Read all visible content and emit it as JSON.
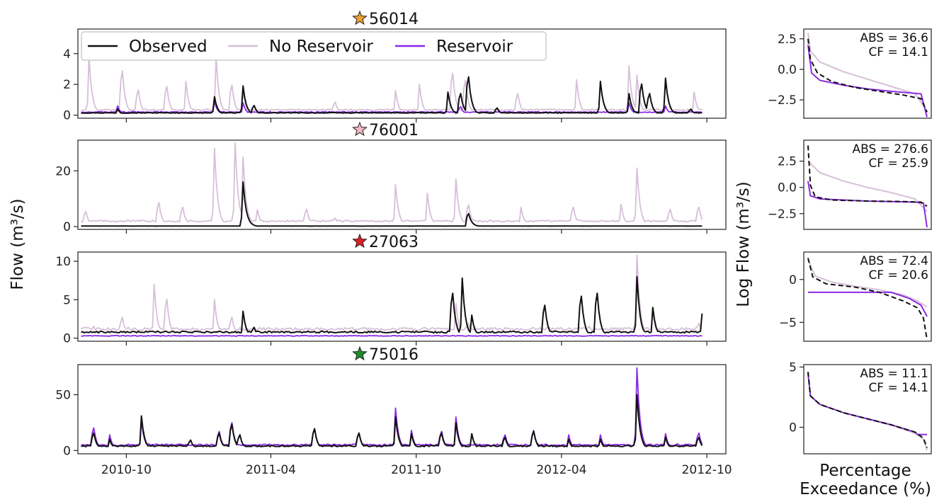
{
  "colors": {
    "observed": "#111111",
    "no_reservoir": "#d6bfd8",
    "reservoir": "#8a2be2",
    "star_56014": "#f0a030",
    "star_76001": "#f4b6c2",
    "star_27063": "#e02020",
    "star_75016": "#1f8a2a"
  },
  "figure": {
    "ylabel_left": "Flow (m³/s)",
    "ylabel_right": "Log Flow (m³/s)",
    "xlabel_right_line1": "Percentage",
    "xlabel_right_line2": "Exceedance (%)",
    "date_ticks": [
      "2010-10",
      "2011-04",
      "2011-10",
      "2012-04",
      "2012-10"
    ]
  },
  "legend": {
    "placement": "top-left of first panel",
    "items": [
      {
        "label": "Observed",
        "color_key": "observed"
      },
      {
        "label": "No Reservoir",
        "color_key": "no_reservoir"
      },
      {
        "label": "Reservoir",
        "color_key": "reservoir"
      }
    ]
  },
  "chart_data": [
    {
      "type": "line",
      "title": "56014",
      "star_color_key": "star_56014",
      "x_range": [
        "2010-08-01",
        "2012-09-30"
      ],
      "ylim": [
        -0.2,
        5.6
      ],
      "yticks": [
        0,
        2,
        4
      ],
      "series": [
        {
          "name": "Observed",
          "color_key": "observed",
          "base": 0.15,
          "peaks": [
            [
              "2010-09-20",
              0.4
            ],
            [
              "2011-01-20",
              1.2
            ],
            [
              "2011-02-25",
              1.9
            ],
            [
              "2011-03-10",
              0.8
            ],
            [
              "2011-11-10",
              1.5
            ],
            [
              "2011-11-25",
              1.8
            ],
            [
              "2011-12-05",
              3.2
            ],
            [
              "2012-01-10",
              0.6
            ],
            [
              "2012-05-20",
              2.2
            ],
            [
              "2012-06-25",
              1.4
            ],
            [
              "2012-07-10",
              2.6
            ],
            [
              "2012-07-20",
              1.8
            ],
            [
              "2012-08-10",
              2.4
            ],
            [
              "2012-09-10",
              0.5
            ]
          ]
        },
        {
          "name": "No Reservoir",
          "color_key": "no_reservoir",
          "base": 0.35,
          "peaks": [
            [
              "2010-08-15",
              3.8
            ],
            [
              "2010-09-25",
              3.7
            ],
            [
              "2010-10-15",
              2.1
            ],
            [
              "2010-11-20",
              2.4
            ],
            [
              "2010-12-15",
              2.2
            ],
            [
              "2011-01-22",
              3.7
            ],
            [
              "2011-02-10",
              2.5
            ],
            [
              "2011-02-25",
              1.6
            ],
            [
              "2011-06-20",
              1.1
            ],
            [
              "2011-09-05",
              1.6
            ],
            [
              "2011-10-05",
              2.0
            ],
            [
              "2011-11-15",
              3.5
            ],
            [
              "2011-12-01",
              2.9
            ],
            [
              "2012-02-05",
              1.8
            ],
            [
              "2012-04-20",
              2.3
            ],
            [
              "2012-05-20",
              2.2
            ],
            [
              "2012-06-25",
              3.2
            ],
            [
              "2012-07-05",
              2.6
            ],
            [
              "2012-08-10",
              2.2
            ],
            [
              "2012-09-15",
              1.5
            ]
          ]
        },
        {
          "name": "Reservoir",
          "color_key": "reservoir",
          "base": 0.2,
          "peaks": [
            [
              "2010-09-20",
              0.6
            ],
            [
              "2011-01-20",
              0.9
            ],
            [
              "2011-02-25",
              0.8
            ],
            [
              "2011-11-25",
              0.7
            ],
            [
              "2012-06-25",
              0.8
            ],
            [
              "2012-08-10",
              0.6
            ]
          ]
        }
      ],
      "fdc": {
        "ylim": [
          -4.0,
          3.3
        ],
        "yticks": [
          2.5,
          0.0,
          -2.5
        ],
        "metrics": [
          "ABS = 36.6",
          "CF = 14.1"
        ],
        "observed": [
          [
            0,
            2.5
          ],
          [
            2,
            0.8
          ],
          [
            8,
            -0.3
          ],
          [
            20,
            -1.0
          ],
          [
            40,
            -1.5
          ],
          [
            60,
            -1.8
          ],
          [
            80,
            -2.1
          ],
          [
            95,
            -2.4
          ],
          [
            100,
            -3.5
          ]
        ],
        "no_reservoir": [
          [
            0,
            3.0
          ],
          [
            2,
            1.5
          ],
          [
            10,
            0.6
          ],
          [
            30,
            -0.2
          ],
          [
            50,
            -0.8
          ],
          [
            70,
            -1.4
          ],
          [
            90,
            -2.0
          ],
          [
            100,
            -3.4
          ]
        ],
        "reservoir": [
          [
            0,
            2.0
          ],
          [
            3,
            -0.3
          ],
          [
            10,
            -0.9
          ],
          [
            30,
            -1.3
          ],
          [
            50,
            -1.6
          ],
          [
            70,
            -1.8
          ],
          [
            95,
            -2.0
          ],
          [
            100,
            -3.9
          ]
        ]
      }
    },
    {
      "type": "line",
      "title": "76001",
      "star_color_key": "star_76001",
      "x_range": [
        "2010-08-01",
        "2012-09-30"
      ],
      "ylim": [
        -1,
        31
      ],
      "yticks": [
        0,
        20
      ],
      "series": [
        {
          "name": "Observed",
          "color_key": "observed",
          "base": 0.2,
          "peaks": [
            [
              "2011-02-25",
              16
            ],
            [
              "2011-03-02",
              4
            ],
            [
              "2011-12-05",
              6
            ]
          ]
        },
        {
          "name": "No Reservoir",
          "color_key": "no_reservoir",
          "base": 2.0,
          "peaks": [
            [
              "2010-08-10",
              7
            ],
            [
              "2010-11-10",
              11
            ],
            [
              "2010-12-10",
              9
            ],
            [
              "2011-01-20",
              28
            ],
            [
              "2011-02-15",
              30
            ],
            [
              "2011-02-25",
              25
            ],
            [
              "2011-03-15",
              6
            ],
            [
              "2011-05-15",
              8
            ],
            [
              "2011-06-20",
              4
            ],
            [
              "2011-09-05",
              15
            ],
            [
              "2011-10-15",
              12
            ],
            [
              "2011-11-20",
              17
            ],
            [
              "2011-12-05",
              10
            ],
            [
              "2012-02-10",
              7
            ],
            [
              "2012-04-15",
              9
            ],
            [
              "2012-06-15",
              8
            ],
            [
              "2012-07-05",
              21
            ],
            [
              "2012-08-15",
              8
            ],
            [
              "2012-09-20",
              9
            ]
          ]
        }
      ],
      "fdc": {
        "ylim": [
          -4.0,
          4.5
        ],
        "yticks": [
          2.5,
          0.0,
          -2.5
        ],
        "metrics": [
          "ABS = 276.6",
          "CF = 25.9"
        ],
        "observed": [
          [
            0,
            4.0
          ],
          [
            2,
            0.2
          ],
          [
            6,
            -0.9
          ],
          [
            20,
            -1.2
          ],
          [
            50,
            -1.3
          ],
          [
            80,
            -1.35
          ],
          [
            95,
            -1.4
          ],
          [
            100,
            -1.8
          ]
        ],
        "no_reservoir": [
          [
            0,
            2.5
          ],
          [
            10,
            1.4
          ],
          [
            30,
            0.6
          ],
          [
            50,
            0.0
          ],
          [
            70,
            -0.5
          ],
          [
            90,
            -1.1
          ],
          [
            100,
            -2.3
          ]
        ],
        "reservoir": [
          [
            0,
            0.6
          ],
          [
            2,
            -0.8
          ],
          [
            10,
            -1.1
          ],
          [
            50,
            -1.3
          ],
          [
            90,
            -1.4
          ],
          [
            97,
            -1.5
          ],
          [
            100,
            -3.8
          ]
        ]
      }
    },
    {
      "type": "line",
      "title": "27063",
      "star_color_key": "star_27063",
      "x_range": [
        "2010-08-01",
        "2012-09-30"
      ],
      "ylim": [
        -0.4,
        11.2
      ],
      "yticks": [
        0,
        5,
        10
      ],
      "series": [
        {
          "name": "Observed",
          "color_key": "observed",
          "base": 0.8,
          "peaks": [
            [
              "2011-02-25",
              3.5
            ],
            [
              "2011-03-10",
              1.8
            ],
            [
              "2011-11-15",
              7.5
            ],
            [
              "2011-11-28",
              7.8
            ],
            [
              "2011-12-10",
              3.0
            ],
            [
              "2012-03-10",
              5.5
            ],
            [
              "2012-04-25",
              7.0
            ],
            [
              "2012-05-15",
              7.5
            ],
            [
              "2012-07-05",
              8.0
            ],
            [
              "2012-07-25",
              4.0
            ],
            [
              "2012-09-25",
              3.2
            ]
          ]
        },
        {
          "name": "No Reservoir",
          "color_key": "no_reservoir",
          "base": 1.2,
          "peaks": [
            [
              "2010-08-20",
              2.0
            ],
            [
              "2010-09-25",
              3.5
            ],
            [
              "2010-11-05",
              7.0
            ],
            [
              "2010-11-20",
              6.5
            ],
            [
              "2011-01-20",
              5.0
            ],
            [
              "2011-02-10",
              3.5
            ],
            [
              "2011-11-20",
              4.5
            ],
            [
              "2011-12-05",
              2.5
            ],
            [
              "2012-05-05",
              2.0
            ],
            [
              "2012-07-05",
              10.8
            ],
            [
              "2012-07-25",
              3.5
            ],
            [
              "2012-09-20",
              2.5
            ]
          ]
        },
        {
          "name": "Reservoir",
          "color_key": "reservoir",
          "base": 0.3,
          "peaks": []
        }
      ],
      "fdc": {
        "ylim": [
          -7.2,
          3.2
        ],
        "yticks": [
          0,
          -5
        ],
        "metrics": [
          "ABS = 72.4",
          "CF = 20.6"
        ],
        "observed": [
          [
            0,
            2.5
          ],
          [
            4,
            0.3
          ],
          [
            15,
            -0.5
          ],
          [
            40,
            -0.9
          ],
          [
            60,
            -1.5
          ],
          [
            80,
            -2.5
          ],
          [
            92,
            -3.3
          ],
          [
            97,
            -4.5
          ],
          [
            100,
            -7.0
          ]
        ],
        "no_reservoir": [
          [
            0,
            2.3
          ],
          [
            6,
            0.4
          ],
          [
            20,
            -0.3
          ],
          [
            40,
            -0.8
          ],
          [
            60,
            -1.2
          ],
          [
            80,
            -1.8
          ],
          [
            92,
            -2.5
          ],
          [
            100,
            -3.2
          ]
        ],
        "reservoir": [
          [
            0,
            -1.5
          ],
          [
            70,
            -1.5
          ],
          [
            85,
            -2.2
          ],
          [
            95,
            -3.0
          ],
          [
            100,
            -4.3
          ]
        ]
      }
    },
    {
      "type": "line",
      "title": "75016",
      "star_color_key": "star_75016",
      "x_range": [
        "2010-08-01",
        "2012-09-30"
      ],
      "ylim": [
        -3,
        77
      ],
      "yticks": [
        0,
        50
      ],
      "series": [
        {
          "name": "Observed",
          "color_key": "observed",
          "base": 4.0,
          "peaks": [
            [
              "2010-08-20",
              20
            ],
            [
              "2010-09-10",
              10
            ],
            [
              "2010-10-20",
              31
            ],
            [
              "2010-12-20",
              12
            ],
            [
              "2011-01-25",
              20
            ],
            [
              "2011-02-10",
              30
            ],
            [
              "2011-02-20",
              18
            ],
            [
              "2011-05-25",
              25
            ],
            [
              "2011-07-20",
              20
            ],
            [
              "2011-09-05",
              30
            ],
            [
              "2011-09-25",
              15
            ],
            [
              "2011-11-01",
              20
            ],
            [
              "2011-11-20",
              25
            ],
            [
              "2011-12-10",
              15
            ],
            [
              "2012-01-20",
              15
            ],
            [
              "2012-02-25",
              22
            ],
            [
              "2012-04-10",
              10
            ],
            [
              "2012-05-20",
              10
            ],
            [
              "2012-07-05",
              50
            ],
            [
              "2012-08-10",
              12
            ],
            [
              "2012-09-20",
              15
            ]
          ]
        },
        {
          "name": "Reservoir",
          "color_key": "reservoir",
          "base": 5.0,
          "peaks": [
            [
              "2010-08-20",
              26
            ],
            [
              "2010-09-10",
              14
            ],
            [
              "2010-10-20",
              27
            ],
            [
              "2011-01-25",
              22
            ],
            [
              "2011-02-10",
              32
            ],
            [
              "2011-05-25",
              25
            ],
            [
              "2011-07-20",
              20
            ],
            [
              "2011-09-05",
              38
            ],
            [
              "2011-09-25",
              18
            ],
            [
              "2011-11-01",
              22
            ],
            [
              "2011-11-20",
              30
            ],
            [
              "2012-01-20",
              18
            ],
            [
              "2012-02-25",
              23
            ],
            [
              "2012-04-10",
              14
            ],
            [
              "2012-05-20",
              14
            ],
            [
              "2012-07-05",
              74
            ],
            [
              "2012-08-10",
              15
            ],
            [
              "2012-09-20",
              20
            ]
          ]
        }
      ],
      "fdc": {
        "ylim": [
          -2.2,
          5.2
        ],
        "yticks": [
          5,
          0
        ],
        "metrics": [
          "ABS = 11.1",
          "CF = 14.1"
        ],
        "observed": [
          [
            0,
            4.6
          ],
          [
            2,
            2.6
          ],
          [
            10,
            1.9
          ],
          [
            30,
            1.2
          ],
          [
            50,
            0.7
          ],
          [
            70,
            0.2
          ],
          [
            90,
            -0.4
          ],
          [
            97,
            -0.9
          ],
          [
            100,
            -1.7
          ]
        ],
        "no_reservoir": [
          [
            0,
            4.5
          ],
          [
            2,
            2.6
          ],
          [
            10,
            1.9
          ],
          [
            30,
            1.2
          ],
          [
            50,
            0.7
          ],
          [
            70,
            0.2
          ],
          [
            90,
            -0.5
          ],
          [
            97,
            -1.0
          ],
          [
            100,
            -1.9
          ]
        ],
        "reservoir": [
          [
            0,
            4.5
          ],
          [
            2,
            2.6
          ],
          [
            10,
            1.9
          ],
          [
            30,
            1.2
          ],
          [
            50,
            0.7
          ],
          [
            70,
            0.2
          ],
          [
            90,
            -0.4
          ],
          [
            92,
            -0.6
          ],
          [
            100,
            -0.6
          ]
        ]
      }
    }
  ]
}
